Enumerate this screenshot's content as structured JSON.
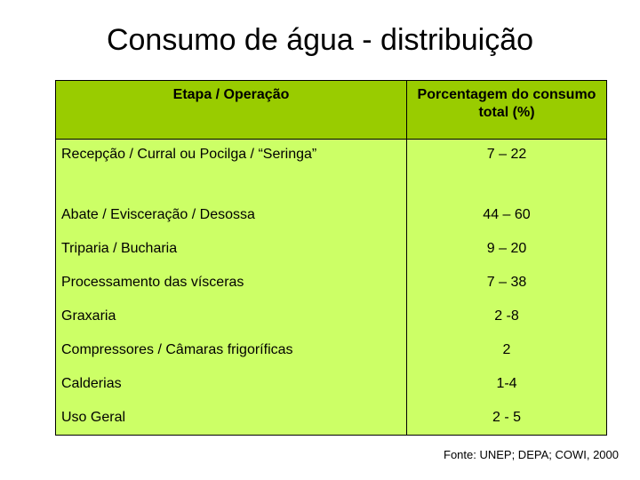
{
  "title": "Consumo de água - distribuição",
  "table": {
    "headers": [
      "Etapa / Operação",
      "Porcentagem do consumo total (%)"
    ],
    "rows": [
      {
        "operation": "Recepção / Curral ou Pocilga / “Seringa”",
        "percentage": "7 – 22"
      },
      {
        "operation": "Abate / Evisceração / Desossa",
        "percentage": "44 – 60"
      },
      {
        "operation": "Triparia / Bucharia",
        "percentage": "9 – 20"
      },
      {
        "operation": "Processamento das vísceras",
        "percentage": "7 – 38"
      },
      {
        "operation": "Graxaria",
        "percentage": "2 -8"
      },
      {
        "operation": "Compressores / Câmaras frigoríficas",
        "percentage": "2"
      },
      {
        "operation": "Calderias",
        "percentage": "1-4"
      },
      {
        "operation": "Uso Geral",
        "percentage": "2 - 5"
      }
    ]
  },
  "source": "Fonte: UNEP; DEPA; COWI, 2000",
  "colors": {
    "header_bg": "#99cc00",
    "body_bg": "#ccff66"
  }
}
